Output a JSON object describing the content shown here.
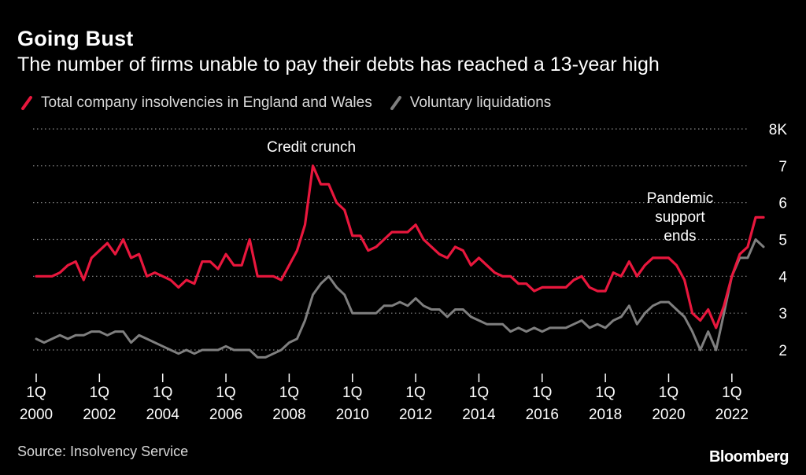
{
  "title": "Going Bust",
  "subtitle": "The number of firms unable to pay their debts has reached a 13-year high",
  "source": "Source: Insolvency Service",
  "brand": "Bloomberg",
  "colors": {
    "total": "#e8173d",
    "voluntary": "#7f7f7f",
    "grid": "#8a8a8a",
    "text": "#ffffff"
  },
  "chart_data": {
    "type": "line",
    "title": "Going Bust",
    "subtitle": "The number of firms unable to pay their debts has reached a 13-year high",
    "xlabel": "",
    "ylabel": "",
    "x_start": "2000 Q1",
    "ylim": [
      1.5,
      8
    ],
    "yticks": [
      {
        "value": 2,
        "label": "2"
      },
      {
        "value": 3,
        "label": "3"
      },
      {
        "value": 4,
        "label": "4"
      },
      {
        "value": 5,
        "label": "5"
      },
      {
        "value": 6,
        "label": "6"
      },
      {
        "value": 7,
        "label": "7"
      },
      {
        "value": 8,
        "label": "8K"
      }
    ],
    "xticks": [
      {
        "index": 0,
        "quarter": "1Q",
        "year": "2000"
      },
      {
        "index": 8,
        "quarter": "1Q",
        "year": "2002"
      },
      {
        "index": 16,
        "quarter": "1Q",
        "year": "2004"
      },
      {
        "index": 24,
        "quarter": "1Q",
        "year": "2006"
      },
      {
        "index": 32,
        "quarter": "1Q",
        "year": "2008"
      },
      {
        "index": 40,
        "quarter": "1Q",
        "year": "2010"
      },
      {
        "index": 48,
        "quarter": "1Q",
        "year": "2012"
      },
      {
        "index": 56,
        "quarter": "1Q",
        "year": "2014"
      },
      {
        "index": 64,
        "quarter": "1Q",
        "year": "2016"
      },
      {
        "index": 72,
        "quarter": "1Q",
        "year": "2018"
      },
      {
        "index": 80,
        "quarter": "1Q",
        "year": "2020"
      },
      {
        "index": 88,
        "quarter": "1Q",
        "year": "2022"
      }
    ],
    "grid": "horizontal-dotted",
    "legend_position": "top-left",
    "series": [
      {
        "name": "Total company insolvencies in England and Wales",
        "key": "total",
        "values": [
          4.0,
          4.0,
          4.0,
          4.1,
          4.3,
          4.4,
          3.9,
          4.5,
          4.7,
          4.9,
          4.6,
          5.0,
          4.5,
          4.6,
          4.0,
          4.1,
          4.0,
          3.9,
          3.7,
          3.9,
          3.8,
          4.4,
          4.4,
          4.2,
          4.6,
          4.3,
          4.3,
          5.0,
          4.0,
          4.0,
          4.0,
          3.9,
          4.3,
          4.7,
          5.4,
          7.0,
          6.5,
          6.5,
          6.0,
          5.8,
          5.1,
          5.1,
          4.7,
          4.8,
          5.0,
          5.2,
          5.2,
          5.2,
          5.4,
          5.0,
          4.8,
          4.6,
          4.5,
          4.8,
          4.7,
          4.3,
          4.5,
          4.3,
          4.1,
          4.0,
          4.0,
          3.8,
          3.8,
          3.6,
          3.7,
          3.7,
          3.7,
          3.7,
          3.9,
          4.0,
          3.7,
          3.6,
          3.6,
          4.1,
          4.0,
          4.4,
          4.0,
          4.3,
          4.5,
          4.5,
          4.5,
          4.3,
          3.9,
          3.0,
          2.8,
          3.1,
          2.6,
          3.2,
          4.0,
          4.6,
          4.8,
          5.6,
          5.6
        ]
      },
      {
        "name": "Voluntary liquidations",
        "key": "voluntary",
        "values": [
          2.3,
          2.2,
          2.3,
          2.4,
          2.3,
          2.4,
          2.4,
          2.5,
          2.5,
          2.4,
          2.5,
          2.5,
          2.2,
          2.4,
          2.3,
          2.2,
          2.1,
          2.0,
          1.9,
          2.0,
          1.9,
          2.0,
          2.0,
          2.0,
          2.1,
          2.0,
          2.0,
          2.0,
          1.8,
          1.8,
          1.9,
          2.0,
          2.2,
          2.3,
          2.8,
          3.5,
          3.8,
          4.0,
          3.7,
          3.5,
          3.0,
          3.0,
          3.0,
          3.0,
          3.2,
          3.2,
          3.3,
          3.2,
          3.4,
          3.2,
          3.1,
          3.1,
          2.9,
          3.1,
          3.1,
          2.9,
          2.8,
          2.7,
          2.7,
          2.7,
          2.5,
          2.6,
          2.5,
          2.6,
          2.5,
          2.6,
          2.6,
          2.6,
          2.7,
          2.8,
          2.6,
          2.7,
          2.6,
          2.8,
          2.9,
          3.2,
          2.7,
          3.0,
          3.2,
          3.3,
          3.3,
          3.1,
          2.9,
          2.5,
          2.0,
          2.5,
          2.0,
          3.0,
          4.0,
          4.5,
          4.5,
          5.0,
          4.8
        ]
      }
    ],
    "annotations": [
      {
        "text": "Credit crunch",
        "index": 35,
        "value": 7.0
      },
      {
        "lines": [
          "Pandemic",
          "support",
          "ends"
        ],
        "index": 91,
        "value": 5.6
      }
    ]
  }
}
